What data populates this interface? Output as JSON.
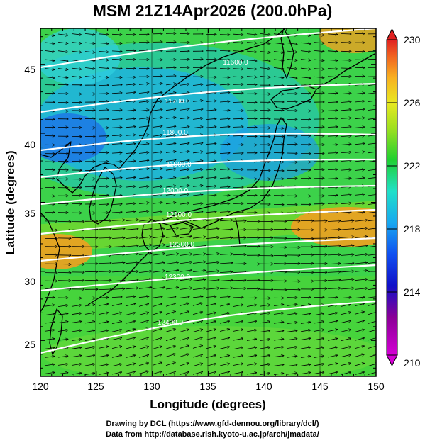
{
  "title": "MSM 21Z14Apr2026 (200.0hPa)",
  "axes": {
    "x_label": "Longitude (degrees)",
    "y_label": "Latitude  (degrees)",
    "x_range": [
      120,
      150
    ],
    "y_range": [
      22.4,
      47.6
    ],
    "x_ticks": [
      "120",
      "125",
      "130",
      "135",
      "140",
      "145",
      "150"
    ],
    "y_ticks": [
      "25",
      "30",
      "35",
      "40",
      "45"
    ]
  },
  "colorbar": {
    "min": 210,
    "max": 230,
    "labels": [
      "230",
      "226",
      "222",
      "218",
      "214",
      "210"
    ]
  },
  "colors": {
    "coastline": "#000000",
    "contours": "#ffffff",
    "vectors": "#000000"
  },
  "contours": [
    {
      "value": 11600,
      "label": "11600.0"
    },
    {
      "value": 11700,
      "label": "11700.0"
    },
    {
      "value": 11800,
      "label": "11800.0"
    },
    {
      "value": 11900,
      "label": "11900.0"
    },
    {
      "value": 12000,
      "label": "12000.0"
    },
    {
      "value": 12100,
      "label": "12100.0"
    },
    {
      "value": 12200,
      "label": "12200.0"
    },
    {
      "value": 12300,
      "label": "12300.0"
    },
    {
      "value": 12400,
      "label": "12400.0"
    }
  ],
  "credits": {
    "line1": "Drawing by DCL (https://www.gfd-dennou.org/library/dcl/)",
    "line2": "Data from http://database.rish.kyoto-u.ac.jp/arch/jmadata/"
  }
}
